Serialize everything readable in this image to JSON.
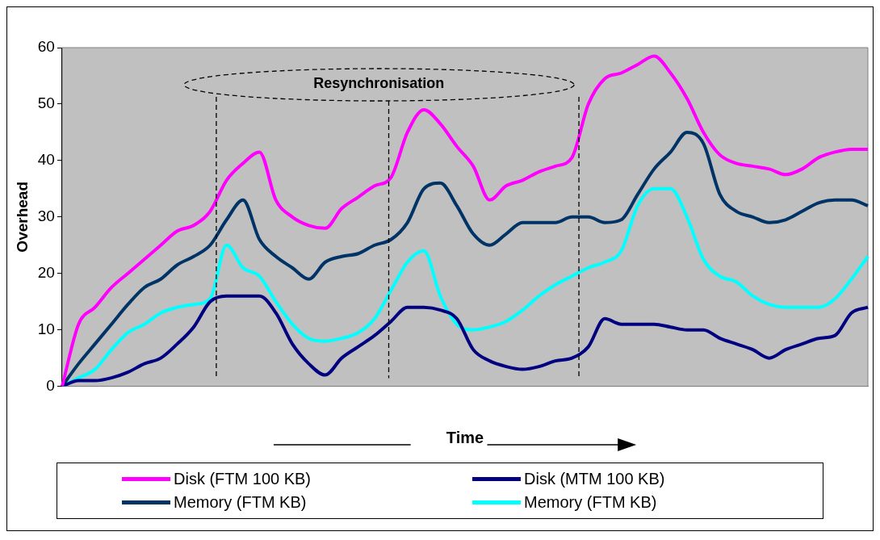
{
  "chart_data": {
    "type": "line",
    "xlabel": "Time",
    "ylabel": "Overhead",
    "annotations": [
      "Resynchronisation"
    ],
    "categories": [
      null,
      null,
      null,
      null,
      null,
      null,
      null,
      null,
      null,
      null,
      null,
      null,
      null,
      null,
      null,
      null,
      null,
      null,
      null,
      null,
      null,
      null,
      null,
      null,
      null,
      null,
      null,
      null,
      null,
      null,
      null,
      null,
      null,
      null,
      null,
      null,
      null,
      null,
      null,
      null,
      null,
      null,
      null,
      null,
      null,
      null,
      null,
      null,
      null,
      null
    ],
    "ylim": [
      0,
      60
    ],
    "yticks": [
      0,
      10,
      20,
      30,
      40,
      50,
      60
    ],
    "grid": false,
    "legend": "bottom",
    "marker": "none",
    "line_style": "solid",
    "series": [
      {
        "name": "Disk (FTM 100 KB)",
        "color": "#ff00ff",
        "values": [
          0,
          11,
          14,
          17.5,
          20,
          22.5,
          25,
          27.5,
          28.5,
          31,
          36.5,
          39.5,
          41.5,
          33,
          30,
          28.5,
          28,
          31.5,
          33.5,
          35.5,
          37,
          45,
          49,
          46.5,
          42.5,
          39,
          33,
          35.5,
          36.5,
          38,
          39,
          40.5,
          50,
          54.5,
          55.5,
          57,
          58.5,
          55.5,
          51,
          45,
          41,
          39.5,
          39,
          38.5,
          37.5,
          38.5,
          40.5,
          41.5,
          42,
          42
        ]
      },
      {
        "name": "Disk (MTM 100 KB)",
        "color": "#000080",
        "values": [
          0,
          1,
          1,
          1.5,
          2.5,
          4,
          5,
          7.5,
          10.5,
          15,
          16,
          16,
          16,
          13,
          7.5,
          4,
          2,
          5,
          7,
          9,
          11.5,
          14,
          14,
          13.5,
          12,
          6.5,
          4.5,
          3.5,
          3,
          3.5,
          4.5,
          5,
          7,
          12,
          11,
          11,
          11,
          10.5,
          10,
          10,
          8.5,
          7.5,
          6.5,
          5,
          6.5,
          7.5,
          8.5,
          9,
          13,
          14
        ]
      },
      {
        "name": "Memory (FTM KB)",
        "color": "#003366",
        "values": [
          0,
          4,
          7.5,
          11,
          14.5,
          17.5,
          19,
          21.5,
          23,
          25,
          29.5,
          33,
          26,
          23,
          21,
          19,
          22,
          23,
          23.5,
          25,
          26,
          29,
          35,
          36,
          32,
          27,
          25,
          27,
          29,
          29,
          29,
          30,
          30,
          29,
          29.5,
          34,
          38.5,
          41.5,
          45,
          43,
          34,
          31,
          30,
          29,
          29.5,
          31,
          32.5,
          33,
          33,
          32
        ]
      },
      {
        "name": "Memory (FTM KB)",
        "color": "#00ffff",
        "values": [
          0,
          1.5,
          3,
          6.5,
          9.5,
          11,
          13,
          14,
          14.5,
          15.5,
          25,
          21,
          19.5,
          15,
          11,
          8.5,
          8,
          8.5,
          9.5,
          12,
          17,
          22,
          24,
          16,
          11,
          10,
          10.5,
          11.5,
          13.5,
          16,
          18,
          19.5,
          21,
          22,
          24,
          32,
          35,
          35,
          30,
          22.5,
          19.5,
          18.5,
          16,
          14.5,
          14,
          14,
          14,
          15.5,
          19,
          23
        ]
      }
    ]
  }
}
